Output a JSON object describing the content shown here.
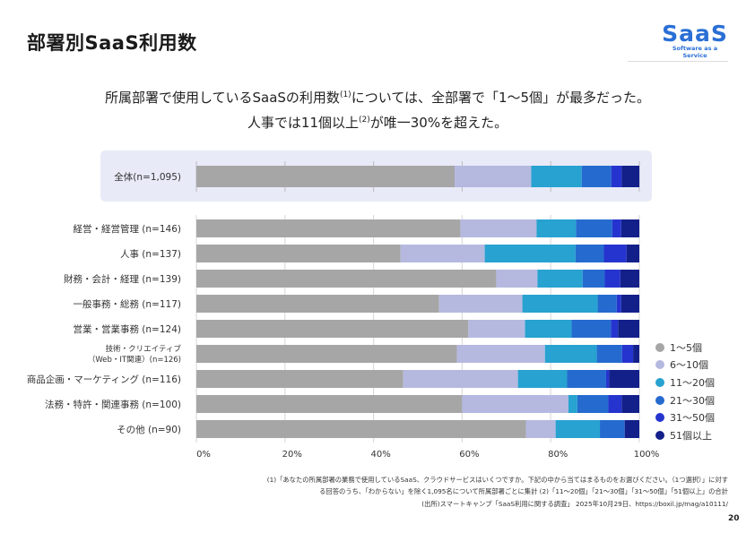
{
  "title": "部署別SaaS利用数",
  "logo": {
    "main": "SaaS",
    "tagline": "Software as a Service"
  },
  "subtitle": {
    "line1_a": "所属部署で使用しているSaaSの利用数",
    "line1_sup": "(1)",
    "line1_b": "については、全部署で「1〜5個」が最多だった。",
    "line2_a": "人事では11個以上",
    "line2_sup": "(2)",
    "line2_b": "が唯一30%を超えた。"
  },
  "chart_data": {
    "type": "bar",
    "orientation": "horizontal-stacked-100",
    "xlim": [
      0,
      100
    ],
    "x_ticks": [
      "0%",
      "20%",
      "40%",
      "60%",
      "80%",
      "100%"
    ],
    "grid": true,
    "legend_position": "right-bottom",
    "series_names": [
      "1〜5個",
      "6〜10個",
      "11〜20個",
      "21〜30個",
      "31〜50個",
      "51個以上"
    ],
    "colors": [
      "#a6a6a6",
      "#b5b9e0",
      "#27a2d1",
      "#256bcf",
      "#2634cf",
      "#13208a"
    ],
    "overall": {
      "label": "全体(n=1,095)",
      "values": [
        58.3,
        17.3,
        11.4,
        6.7,
        2.3,
        4.0
      ]
    },
    "categories": [
      {
        "label": "経営・経営管理 (n=146)",
        "values": [
          59.6,
          17.2,
          8.9,
          8.2,
          2.0,
          4.1
        ]
      },
      {
        "label": "人事 (n=137)",
        "values": [
          46.1,
          19.0,
          20.5,
          6.4,
          5.1,
          2.9
        ]
      },
      {
        "label": "財務・会計・経理 (n=139)",
        "values": [
          67.7,
          9.3,
          10.2,
          5.0,
          3.5,
          4.3
        ]
      },
      {
        "label": "一般事務・総務 (n=117)",
        "values": [
          54.8,
          18.8,
          17.0,
          4.3,
          1.0,
          4.1
        ]
      },
      {
        "label": "営業・営業事務 (n=124)",
        "values": [
          61.4,
          12.8,
          10.5,
          8.9,
          1.6,
          4.8
        ]
      },
      {
        "label": "技術・クリエイティブ",
        "label2": "（Web・IT関連）(n=126)",
        "values": [
          58.8,
          19.9,
          11.7,
          5.7,
          2.5,
          1.4
        ]
      },
      {
        "label": "商品企画・マーケティング (n=116)",
        "values": [
          46.7,
          25.9,
          11.1,
          8.8,
          0.7,
          6.8
        ]
      },
      {
        "label": "法務・特許・関連事務 (n=100)",
        "values": [
          60.0,
          24.0,
          2.0,
          7.0,
          3.0,
          4.0
        ]
      },
      {
        "label": "その他 (n=90)",
        "values": [
          74.4,
          6.7,
          10.0,
          5.6,
          0.0,
          3.3
        ]
      }
    ]
  },
  "footnotes": [
    "(1)「あなたの所属部署の業務で使用しているSaaS、クラウドサービスはいくつですか。下記の中から当てはまるものをお選びください。（1つ選択）」に対す",
    "る回答のうち、「わからない」を除く1,095名について所属部署ごとに集計 (2)「11〜20個」「21〜30個」「31〜50個」「51個以上」の合計",
    "(出所)スマートキャンプ「SaaS利用に関する調査」 2025年10月29日、https://boxil.jp/mag/a10111/"
  ],
  "page_number": "20"
}
